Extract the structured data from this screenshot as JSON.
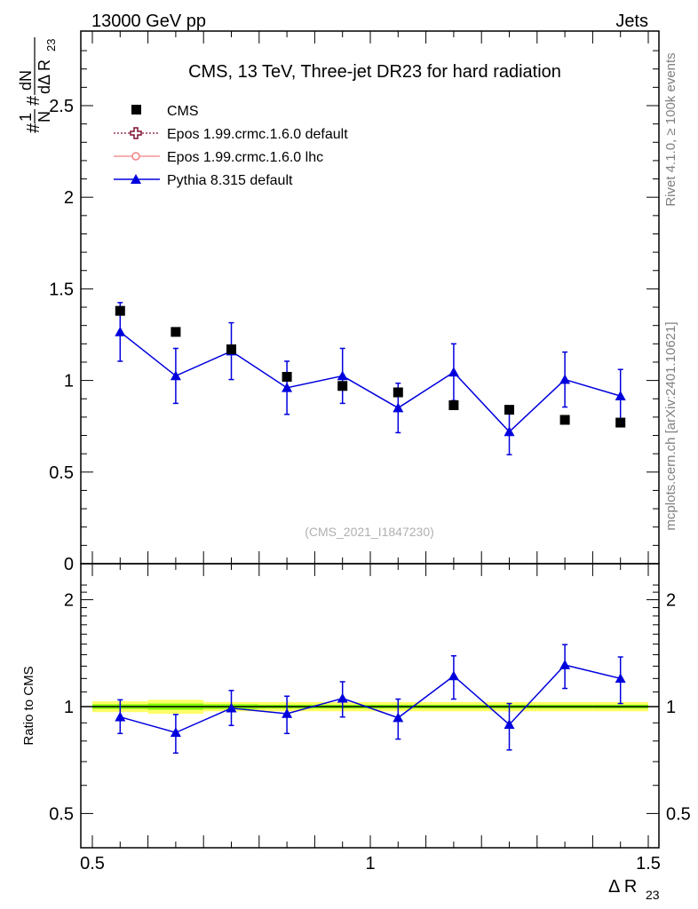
{
  "header": {
    "energy_label": "13000 GeV pp",
    "category_label": "Jets",
    "side_label_rivet": "Rivet 4.1.0, ≥ 100k events",
    "side_label_mcplots": "mcplots.cern.ch [arXiv:2401.10621]"
  },
  "colors": {
    "cms": "#000000",
    "epos_default": "#7f0f2f",
    "epos_lhc": "#f08080",
    "pythia": "#0000dd",
    "band_inner": "#7fff00",
    "band_outer": "#ffff66"
  },
  "chart_data": [
    {
      "type": "scatter",
      "title": "CMS, 13 TeV, Three-jet DR23 for hard radiation",
      "watermark": "(CMS_2021_I1847230)",
      "ylabel": "#1/N #dN/dΔ R_23",
      "ylabel_parts": {
        "hash1": "#",
        "one": "1",
        "N": "N",
        "hash2": "#",
        "dN": "dN",
        "dDelta": "dΔ R",
        "sub": "23"
      },
      "xlim": [
        0.5,
        1.5
      ],
      "ylim": [
        0,
        2.9
      ],
      "yticks": [
        0,
        0.5,
        1,
        1.5,
        2,
        2.5
      ],
      "ytick_labels": [
        "0",
        "0.5",
        "1",
        "1.5",
        "2",
        "2.5"
      ],
      "legend": [
        {
          "name": "CMS",
          "marker": "square"
        },
        {
          "name": "Epos 1.99.crmc.1.6.0 default",
          "marker": "open-cross"
        },
        {
          "name": "Epos 1.99.crmc.1.6.0 lhc",
          "marker": "open-circle"
        },
        {
          "name": "Pythia 8.315 default",
          "marker": "triangle"
        }
      ],
      "series": [
        {
          "name": "CMS",
          "x": [
            0.55,
            0.65,
            0.75,
            0.85,
            0.95,
            1.05,
            1.15,
            1.25,
            1.35,
            1.45
          ],
          "values": [
            1.38,
            1.265,
            1.17,
            1.02,
            0.97,
            0.935,
            0.865,
            0.84,
            0.785,
            0.77
          ]
        },
        {
          "name": "Pythia 8.315 default",
          "x": [
            0.55,
            0.65,
            0.75,
            0.85,
            0.95,
            1.05,
            1.15,
            1.25,
            1.35,
            1.45
          ],
          "values": [
            1.265,
            1.025,
            1.16,
            0.96,
            1.025,
            0.85,
            1.045,
            0.72,
            1.005,
            0.915
          ],
          "err": [
            0.16,
            0.15,
            0.155,
            0.145,
            0.15,
            0.135,
            0.155,
            0.125,
            0.15,
            0.145
          ]
        }
      ]
    },
    {
      "type": "line",
      "ylabel": "Ratio to CMS",
      "xlabel": "Δ R_23",
      "xlabel_parts": {
        "main": "Δ R",
        "sub": "23"
      },
      "xlim": [
        0.5,
        1.5
      ],
      "ylim": [
        0.4,
        2.3
      ],
      "log_y": true,
      "yticks": [
        0.5,
        1,
        2
      ],
      "ytick_labels": [
        "0.5",
        "1",
        "2"
      ],
      "xticks": [
        0.5,
        1,
        1.5
      ],
      "xtick_labels": [
        "0.5",
        "1",
        "1.5"
      ],
      "series": [
        {
          "name": "Pythia 8.315 default",
          "x": [
            0.55,
            0.65,
            0.75,
            0.85,
            0.95,
            1.05,
            1.15,
            1.25,
            1.35,
            1.45
          ],
          "values": [
            0.935,
            0.845,
            0.99,
            0.955,
            1.055,
            0.93,
            1.22,
            0.89,
            1.31,
            1.2
          ],
          "err_lo": [
            0.095,
            0.105,
            0.105,
            0.115,
            0.12,
            0.12,
            0.17,
            0.135,
            0.185,
            0.18
          ],
          "err_hi": [
            0.11,
            0.105,
            0.12,
            0.115,
            0.12,
            0.12,
            0.17,
            0.13,
            0.185,
            0.18
          ]
        }
      ],
      "band": {
        "x": [
          0.5,
          0.6,
          0.7,
          0.8,
          0.9,
          1.0,
          1.1,
          1.2,
          1.3,
          1.4,
          1.5
        ],
        "inner": [
          0.015,
          0.02,
          0.015,
          0.012,
          0.012,
          0.012,
          0.012,
          0.012,
          0.012,
          0.012
        ],
        "outer": [
          0.035,
          0.045,
          0.03,
          0.03,
          0.03,
          0.03,
          0.03,
          0.03,
          0.03,
          0.03
        ]
      }
    }
  ]
}
